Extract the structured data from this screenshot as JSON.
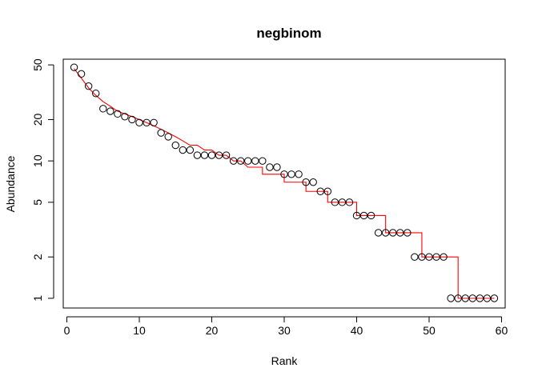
{
  "chart_data": {
    "type": "scatter",
    "title": "negbinom",
    "xlabel": "Rank",
    "ylabel": "Abundance",
    "xlim": [
      -0.5,
      60.5
    ],
    "ylim": [
      0.85,
      55
    ],
    "y_scale": "log",
    "x_ticks": [
      0,
      10,
      20,
      30,
      40,
      50,
      60
    ],
    "y_ticks": [
      1,
      2,
      5,
      10,
      20,
      50
    ],
    "grid": false,
    "series": [
      {
        "kind": "points",
        "x": [
          1,
          2,
          3,
          4,
          5,
          6,
          7,
          8,
          9,
          10,
          11,
          12,
          13,
          14,
          15,
          16,
          17,
          18,
          19,
          20,
          21,
          22,
          23,
          24,
          25,
          26,
          27,
          28,
          29,
          30,
          31,
          32,
          33,
          34,
          35,
          36,
          37,
          38,
          39,
          40,
          41,
          42,
          43,
          44,
          45,
          46,
          47,
          48,
          49,
          50,
          51,
          52,
          53,
          54,
          55,
          56,
          57,
          58,
          59
        ],
        "y": [
          48,
          43,
          35,
          31,
          24,
          23,
          22,
          21,
          20,
          19,
          19,
          19,
          16,
          15,
          13,
          12,
          12,
          11,
          11,
          11,
          11,
          11,
          10,
          10,
          10,
          10,
          10,
          9,
          9,
          8,
          8,
          8,
          7,
          7,
          6,
          6,
          5,
          5,
          5,
          4,
          4,
          4,
          3,
          3,
          3,
          3,
          3,
          2,
          2,
          2,
          2,
          2,
          1,
          1,
          1,
          1,
          1,
          1,
          1
        ],
        "color": "#000000"
      },
      {
        "kind": "step-line",
        "x": [
          1,
          2,
          3,
          4,
          5,
          6,
          7,
          8,
          9,
          10,
          11,
          12,
          13,
          14,
          15,
          16,
          17,
          18,
          19,
          20,
          21,
          22,
          23,
          24,
          25,
          26,
          27,
          28,
          29,
          30,
          31,
          32,
          33,
          34,
          35,
          36,
          37,
          38,
          39,
          40,
          41,
          42,
          43,
          44,
          45,
          46,
          47,
          48,
          49,
          50,
          51,
          52,
          53,
          54,
          55,
          56,
          57,
          58,
          59
        ],
        "y": [
          47,
          40,
          34,
          30,
          27,
          25,
          23,
          22,
          21,
          20,
          19,
          18,
          17,
          16,
          15,
          14,
          13,
          13,
          12,
          12,
          11,
          11,
          10,
          10,
          9,
          9,
          8,
          8,
          8,
          7,
          7,
          7,
          6,
          6,
          6,
          5,
          5,
          5,
          5,
          4,
          4,
          4,
          4,
          3,
          3,
          3,
          3,
          3,
          2,
          2,
          2,
          2,
          2,
          1,
          1,
          1,
          1,
          1,
          1
        ],
        "color": "#ff0000"
      }
    ]
  }
}
